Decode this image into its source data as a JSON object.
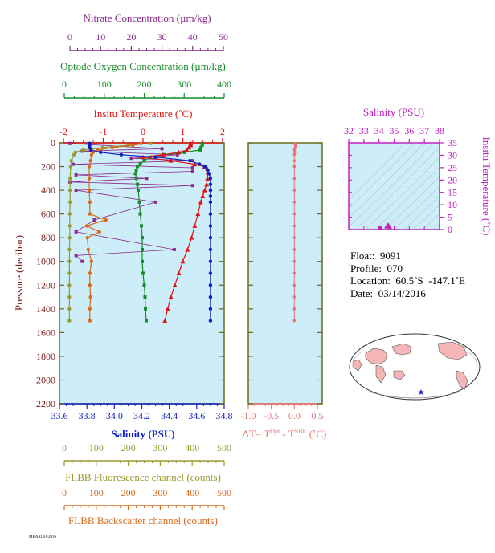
{
  "axes": {
    "nitrate": {
      "label": "Nitrate Concentration (µm/kg)",
      "ticks": [
        "0",
        "10",
        "20",
        "30",
        "40",
        "50"
      ],
      "min": 0,
      "max": 50,
      "color": "#8b2b8b"
    },
    "oxygen": {
      "label": "Optode Oxygen Concentration (µm/kg)",
      "ticks": [
        "0",
        "100",
        "200",
        "300",
        "400"
      ],
      "min": 0,
      "max": 400,
      "color": "#178a2a"
    },
    "temperature": {
      "label": "Insitu Temperature (˚C)",
      "ticks": [
        "-2",
        "-1",
        "0",
        "1",
        "2"
      ],
      "min": -2,
      "max": 2,
      "color": "#e01010"
    },
    "pressure": {
      "label": "Pressure (decibar)",
      "ticks": [
        "0",
        "200",
        "400",
        "600",
        "800",
        "1000",
        "1200",
        "1400",
        "1600",
        "1800",
        "2000",
        "2200"
      ],
      "min": 0,
      "max": 2200,
      "color": "#7a1a1a"
    },
    "salinity": {
      "label": "Salinity (PSU)",
      "ticks": [
        "33.6",
        "33.8",
        "34.0",
        "34.2",
        "34.4",
        "34.6",
        "34.8"
      ],
      "min": 33.6,
      "max": 34.8,
      "color": "#1020c0"
    },
    "fluorescence": {
      "label": "FLBB Fluorescence channel (counts)",
      "ticks": [
        "0",
        "100",
        "200",
        "300",
        "400",
        "500"
      ],
      "min": 0,
      "max": 500,
      "color": "#9a9a30"
    },
    "backscatter": {
      "label": "FLBB Backscatter channel (counts)",
      "ticks": [
        "0",
        "100",
        "200",
        "300",
        "400",
        "500"
      ],
      "min": 0,
      "max": 500,
      "color": "#d86a1a"
    },
    "delta_t": {
      "label_main": "ΔT= T",
      "sup1": "Opt",
      "label_mid": " - T",
      "sup2": "SBE",
      "label_end": " (˚C)",
      "ticks": [
        "-1.0",
        "-0.5",
        "0.0",
        "0.5"
      ],
      "min": -1.0,
      "max": 0.5,
      "color": "#f07070"
    },
    "ts_salinity": {
      "label": "Salinity (PSU)",
      "ticks": [
        "32",
        "33",
        "34",
        "35",
        "36",
        "37",
        "38"
      ],
      "min": 32,
      "max": 38,
      "color": "#c020c0"
    },
    "ts_temperature": {
      "label": "Insitu Temperature (˚C)",
      "ticks": [
        "0",
        "5",
        "10",
        "15",
        "20",
        "25",
        "30",
        "35"
      ],
      "min": 0,
      "max": 35,
      "color": "#c020c0"
    }
  },
  "info": {
    "float": "Float:  9091",
    "profile": "Profile:  070",
    "location": "Location:  60.5˚S  -147.1˚E",
    "date": "Date:  03/14/2016"
  },
  "footer_code": "MBARI 03/2016",
  "colors": {
    "panel_bg": "#cdeef8",
    "frame": "#6a6a1a"
  },
  "chart_data": [
    {
      "type": "line",
      "title": "",
      "y_axis": "pressure (decibar), inverted",
      "series": [
        {
          "name": "temperature",
          "axis": "temperature",
          "marker": "triangle",
          "pressure": [
            5,
            20,
            40,
            60,
            80,
            100,
            120,
            150,
            180,
            200,
            220,
            250,
            300,
            350,
            400,
            450,
            500,
            600,
            700,
            800,
            900,
            1000,
            1100,
            1200,
            1300,
            1400,
            1500
          ],
          "values": [
            1.2,
            1.2,
            1.15,
            1.1,
            0.9,
            0.5,
            0.0,
            0.7,
            1.3,
            1.55,
            1.62,
            1.63,
            1.62,
            1.6,
            1.55,
            1.5,
            1.45,
            1.38,
            1.3,
            1.22,
            1.12,
            1.0,
            0.9,
            0.8,
            0.7,
            0.62,
            0.55
          ]
        },
        {
          "name": "salinity",
          "axis": "salinity",
          "marker": "circle",
          "pressure": [
            5,
            20,
            40,
            60,
            80,
            100,
            120,
            150,
            180,
            200,
            230,
            260,
            300,
            350,
            400,
            450,
            500,
            600,
            700,
            800,
            900,
            1000,
            1100,
            1200,
            1300,
            1400,
            1500
          ],
          "values": [
            33.82,
            33.82,
            33.82,
            33.83,
            33.9,
            34.05,
            34.3,
            34.55,
            34.62,
            34.66,
            34.68,
            34.69,
            34.7,
            34.7,
            34.7,
            34.7,
            34.7,
            34.7,
            34.7,
            34.7,
            34.7,
            34.7,
            34.7,
            34.7,
            34.7,
            34.7,
            34.7
          ]
        },
        {
          "name": "oxygen",
          "axis": "oxygen",
          "marker": "square",
          "pressure": [
            5,
            20,
            40,
            60,
            80,
            100,
            120,
            150,
            180,
            200,
            230,
            260,
            300,
            350,
            400,
            500,
            600,
            700,
            800,
            900,
            1000,
            1100,
            1200,
            1300,
            1400,
            1500
          ],
          "values": [
            345,
            345,
            342,
            340,
            300,
            250,
            215,
            200,
            190,
            183,
            180,
            178,
            180,
            183,
            185,
            188,
            190,
            193,
            195,
            195,
            195,
            197,
            200,
            202,
            203,
            205
          ]
        },
        {
          "name": "nitrate",
          "axis": "nitrate",
          "marker": "square",
          "pressure": [
            5,
            50,
            70,
            100,
            130,
            150,
            180,
            210,
            240,
            270,
            300,
            330,
            360,
            400,
            500,
            650,
            750,
            900,
            950,
            1000
          ],
          "values": [
            0,
            30,
            4,
            35,
            20,
            40,
            1,
            40,
            40,
            2,
            25,
            0,
            40,
            2,
            28,
            8,
            2,
            34,
            2,
            4
          ]
        },
        {
          "name": "fluorescence",
          "axis": "fluorescence",
          "marker": "circle",
          "pressure": [
            5,
            20,
            40,
            60,
            80,
            100,
            150,
            200,
            300,
            400,
            500,
            600,
            700,
            800,
            900,
            1000,
            1100,
            1200,
            1300,
            1400,
            1500
          ],
          "values": [
            270,
            200,
            120,
            60,
            35,
            30,
            22,
            20,
            18,
            18,
            18,
            17,
            17,
            17,
            16,
            16,
            16,
            16,
            16,
            16,
            16
          ]
        },
        {
          "name": "backscatter",
          "axis": "backscatter",
          "marker": "circle",
          "pressure": [
            5,
            20,
            40,
            60,
            80,
            100,
            150,
            200,
            300,
            400,
            500,
            600,
            650,
            700,
            750,
            800,
            900,
            1000,
            1100,
            1200,
            1300,
            1400,
            1500
          ],
          "values": [
            240,
            215,
            150,
            105,
            90,
            85,
            82,
            78,
            78,
            78,
            80,
            80,
            130,
            70,
            110,
            72,
            75,
            85,
            80,
            80,
            82,
            80,
            80
          ]
        }
      ]
    },
    {
      "type": "scatter",
      "title": "",
      "y_axis": "pressure (decibar), inverted",
      "series": [
        {
          "name": "delta_t",
          "axis": "delta_t",
          "pressure": [
            5,
            20,
            40,
            60,
            80,
            100,
            150,
            200,
            300,
            400,
            500,
            600,
            700,
            800,
            900,
            1000,
            1100,
            1200,
            1300,
            1400,
            1500
          ],
          "values": [
            0.03,
            0.02,
            0.02,
            0.0,
            0.01,
            0.0,
            0.0,
            0.0,
            0.0,
            0.0,
            0.0,
            0.0,
            0.0,
            0.0,
            0.0,
            0.0,
            0.0,
            0.0,
            0.0,
            0.0,
            0.0
          ]
        }
      ]
    },
    {
      "type": "scatter",
      "title": "",
      "x_axis": "ts_salinity",
      "y_axis": "ts_temperature",
      "series": [
        {
          "name": "t_s",
          "x": [
            34.1,
            34.5,
            34.6,
            34.7
          ],
          "y": [
            0.5,
            0.8,
            1.6,
            0.6
          ]
        }
      ]
    }
  ]
}
